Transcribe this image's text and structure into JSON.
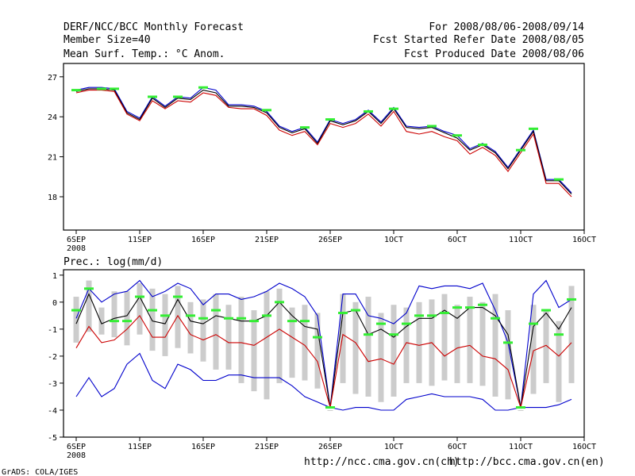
{
  "header": {
    "title": "DERF/NCC/BCC Monthly Forecast",
    "member_size": "Member Size=40",
    "variable": "Mean Surf. Temp.: °C Anom.",
    "period": "For 2008/08/06-2008/09/14",
    "started": "Fcst Started Refer Date 2008/08/05",
    "produced": "Fcst Produced Date 2008/08/06"
  },
  "footer": {
    "ncc_url": "http://ncc.cma.gov.cn(ch)",
    "bcc_url": "http://bcc.cma.gov.cn(en)",
    "grads": "GrADS: COLA/IGES"
  },
  "chart_data": [
    {
      "type": "line",
      "title": "Mean Surf. Temp.: °C Anom.",
      "x_tick_labels": [
        "6SEP",
        "11SEP",
        "16SEP",
        "21SEP",
        "26SEP",
        "1OCT",
        "6OCT",
        "11OCT",
        "16OCT"
      ],
      "x_year_label": "2008",
      "x_tick_days": [
        0,
        5,
        10,
        15,
        20,
        25,
        30,
        35,
        40
      ],
      "xlim": [
        -1,
        40
      ],
      "ylim": [
        15.5,
        28
      ],
      "y_ticks": [
        18,
        21,
        24,
        27
      ],
      "days": [
        0,
        1,
        2,
        3,
        4,
        5,
        6,
        7,
        8,
        9,
        10,
        11,
        12,
        13,
        14,
        15,
        16,
        17,
        18,
        19,
        20,
        21,
        22,
        23,
        24,
        25,
        26,
        27,
        28,
        29,
        30,
        31,
        32,
        33,
        34,
        35,
        36,
        37,
        38,
        39
      ],
      "series": [
        {
          "name": "upper",
          "color": "#0000cc",
          "values": [
            26.0,
            26.2,
            26.2,
            26.1,
            24.4,
            23.9,
            25.5,
            24.8,
            25.5,
            25.4,
            26.2,
            26.0,
            24.9,
            24.9,
            24.8,
            24.4,
            23.3,
            22.9,
            23.2,
            22.1,
            23.8,
            23.5,
            23.8,
            24.5,
            23.6,
            24.7,
            23.3,
            23.2,
            23.3,
            22.9,
            22.6,
            21.6,
            22.0,
            21.4,
            20.2,
            21.6,
            23.0,
            19.3,
            19.3,
            18.3
          ]
        },
        {
          "name": "mean",
          "color": "#000000",
          "values": [
            25.9,
            26.1,
            26.1,
            26.0,
            24.3,
            23.8,
            25.4,
            24.7,
            25.4,
            25.3,
            26.0,
            25.8,
            24.8,
            24.8,
            24.7,
            24.3,
            23.2,
            22.8,
            23.1,
            22.0,
            23.7,
            23.4,
            23.7,
            24.4,
            23.5,
            24.6,
            23.2,
            23.1,
            23.2,
            22.8,
            22.4,
            21.5,
            21.9,
            21.3,
            20.1,
            21.5,
            22.9,
            19.2,
            19.2,
            18.2
          ]
        },
        {
          "name": "lower",
          "color": "#cc0000",
          "values": [
            25.8,
            26.0,
            26.0,
            25.9,
            24.2,
            23.7,
            25.2,
            24.6,
            25.2,
            25.1,
            25.8,
            25.6,
            24.7,
            24.6,
            24.6,
            24.1,
            23.0,
            22.6,
            22.9,
            21.9,
            23.5,
            23.2,
            23.5,
            24.2,
            23.3,
            24.4,
            22.9,
            22.7,
            22.9,
            22.5,
            22.2,
            21.2,
            21.7,
            21.1,
            19.9,
            21.3,
            22.7,
            19.0,
            19.0,
            18.0
          ]
        },
        {
          "name": "observed",
          "color": "#33ee33",
          "values": [
            26.0,
            null,
            26.1,
            26.1,
            null,
            null,
            25.5,
            null,
            25.5,
            null,
            26.2,
            null,
            null,
            null,
            null,
            24.5,
            null,
            null,
            23.2,
            null,
            23.8,
            null,
            null,
            24.4,
            null,
            24.6,
            null,
            null,
            23.3,
            null,
            22.6,
            null,
            21.9,
            null,
            null,
            21.5,
            23.1,
            null,
            19.3,
            null
          ]
        }
      ]
    },
    {
      "type": "line",
      "title": "Prec.: log(mm/d)",
      "x_tick_labels": [
        "6SEP",
        "11SEP",
        "16SEP",
        "21SEP",
        "26SEP",
        "1OCT",
        "6OCT",
        "11OCT",
        "16OCT"
      ],
      "x_year_label": "2008",
      "x_tick_days": [
        0,
        5,
        10,
        15,
        20,
        25,
        30,
        35,
        40
      ],
      "xlim": [
        -1,
        40
      ],
      "ylim": [
        -5,
        1.2
      ],
      "y_ticks": [
        1,
        0,
        -1,
        -2,
        -3,
        -4,
        -5
      ],
      "days": [
        0,
        1,
        2,
        3,
        4,
        5,
        6,
        7,
        8,
        9,
        10,
        11,
        12,
        13,
        14,
        15,
        16,
        17,
        18,
        19,
        20,
        21,
        22,
        23,
        24,
        25,
        26,
        27,
        28,
        29,
        30,
        31,
        32,
        33,
        34,
        35,
        36,
        37,
        38,
        39
      ],
      "spread_low": [
        -1.5,
        -1.1,
        -1.2,
        -1.3,
        -1.6,
        -1.2,
        -1.8,
        -2.0,
        -1.7,
        -1.9,
        -2.2,
        -2.5,
        -2.5,
        -3.0,
        -3.3,
        -3.6,
        -3.0,
        -2.8,
        -2.9,
        -3.2,
        -4.0,
        -3.0,
        -3.4,
        -3.5,
        -3.7,
        -3.5,
        -3.0,
        -3.0,
        -3.1,
        -2.9,
        -3.0,
        -3.0,
        -3.1,
        -3.5,
        -3.6,
        -4.0,
        -3.4,
        -3.0,
        -3.7,
        -3.0
      ],
      "spread_high": [
        0.2,
        0.8,
        -0.2,
        0.4,
        0.4,
        0.7,
        0.5,
        0.3,
        0.6,
        0.0,
        0.1,
        0.3,
        -0.1,
        0.2,
        -0.3,
        0.4,
        0.5,
        -0.2,
        -0.1,
        -0.4,
        -4.0,
        0.3,
        0.0,
        0.2,
        -0.4,
        -0.1,
        -0.2,
        0.0,
        0.1,
        0.3,
        -0.1,
        0.2,
        0.0,
        0.3,
        -0.3,
        -4.0,
        -0.1,
        -0.3,
        -0.7,
        0.6
      ],
      "series": [
        {
          "name": "max",
          "color": "#0000cc",
          "values": [
            -0.6,
            0.5,
            0.0,
            0.3,
            0.4,
            0.8,
            0.2,
            0.4,
            0.7,
            0.5,
            -0.1,
            0.3,
            0.3,
            0.1,
            0.2,
            0.4,
            0.7,
            0.5,
            0.2,
            -0.5,
            -3.9,
            0.3,
            0.3,
            -0.5,
            -0.6,
            -0.8,
            -0.4,
            0.6,
            0.5,
            0.6,
            0.6,
            0.5,
            0.7,
            -0.3,
            -1.5,
            -3.9,
            0.3,
            0.8,
            -0.2,
            0.1
          ]
        },
        {
          "name": "mean",
          "color": "#000000",
          "values": [
            -0.8,
            0.3,
            -0.8,
            -0.6,
            -0.5,
            0.2,
            -0.7,
            -0.8,
            0.1,
            -0.7,
            -0.8,
            -0.5,
            -0.6,
            -0.7,
            -0.7,
            -0.5,
            0.0,
            -0.5,
            -0.9,
            -1.0,
            -3.9,
            -0.4,
            -0.3,
            -1.2,
            -1.0,
            -1.3,
            -0.9,
            -0.6,
            -0.6,
            -0.3,
            -0.6,
            -0.2,
            -0.2,
            -0.5,
            -1.2,
            -3.9,
            -0.9,
            -0.4,
            -1.0,
            -0.2
          ]
        },
        {
          "name": "ensemble_mean",
          "color": "#cc0000",
          "values": [
            -1.7,
            -0.9,
            -1.5,
            -1.4,
            -1.0,
            -0.5,
            -1.3,
            -1.3,
            -0.5,
            -1.2,
            -1.4,
            -1.2,
            -1.5,
            -1.5,
            -1.6,
            -1.3,
            -1.0,
            -1.3,
            -1.6,
            -2.2,
            -3.9,
            -1.2,
            -1.5,
            -2.2,
            -2.1,
            -2.3,
            -1.5,
            -1.6,
            -1.5,
            -2.0,
            -1.7,
            -1.6,
            -2.0,
            -2.1,
            -2.5,
            -3.9,
            -1.8,
            -1.6,
            -2.0,
            -1.5
          ]
        },
        {
          "name": "min",
          "color": "#0000cc",
          "values": [
            -3.5,
            -2.8,
            -3.5,
            -3.2,
            -2.3,
            -1.9,
            -2.9,
            -3.2,
            -2.3,
            -2.5,
            -2.9,
            -2.9,
            -2.7,
            -2.7,
            -2.8,
            -2.8,
            -2.8,
            -3.1,
            -3.5,
            -3.7,
            -3.9,
            -4.0,
            -3.9,
            -3.9,
            -4.0,
            -4.0,
            -3.6,
            -3.5,
            -3.4,
            -3.5,
            -3.5,
            -3.5,
            -3.6,
            -4.0,
            -4.0,
            -3.9,
            -3.9,
            -3.9,
            -3.8,
            -3.6
          ]
        },
        {
          "name": "observed",
          "color": "#33ee33",
          "values": [
            -0.3,
            0.5,
            null,
            -0.7,
            -0.7,
            0.2,
            -0.3,
            -0.5,
            0.2,
            -0.5,
            -0.6,
            -0.3,
            -0.6,
            -0.6,
            -0.7,
            -0.5,
            0.0,
            -0.7,
            -0.7,
            -1.3,
            -3.9,
            -0.4,
            -0.3,
            -1.2,
            -0.8,
            -1.2,
            -0.8,
            -0.5,
            -0.5,
            -0.4,
            -0.2,
            -0.2,
            -0.1,
            -0.6,
            -1.5,
            -3.9,
            -0.8,
            -0.3,
            -1.2,
            0.1
          ]
        }
      ]
    }
  ]
}
